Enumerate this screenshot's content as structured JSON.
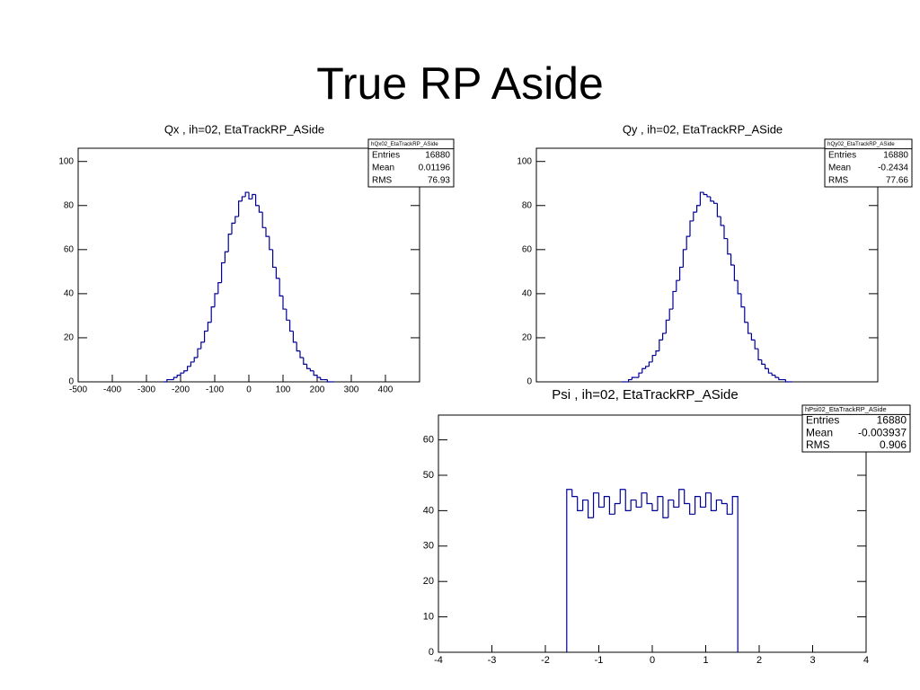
{
  "title": "True RP Aside",
  "chart_data": [
    {
      "type": "histogram",
      "title": "Qx , ih=02, EtaTrackRP_ASide",
      "color": "#000099",
      "bins": [
        -250,
        -240,
        -230,
        -220,
        -210,
        -200,
        -190,
        -180,
        -170,
        -160,
        -150,
        -140,
        -130,
        -120,
        -110,
        -100,
        -90,
        -80,
        -70,
        -60,
        -50,
        -40,
        -30,
        -20,
        -10,
        0,
        10,
        20,
        30,
        40,
        50,
        60,
        70,
        80,
        90,
        100,
        110,
        120,
        130,
        140,
        150,
        160,
        170,
        180,
        190,
        200,
        210,
        220,
        230,
        240,
        250
      ],
      "values": [
        0,
        1,
        1,
        2,
        3,
        4,
        5,
        7,
        9,
        11,
        15,
        18,
        23,
        27,
        34,
        40,
        45,
        54,
        59,
        67,
        72,
        75,
        82,
        84,
        86,
        83,
        85,
        80,
        77,
        70,
        66,
        60,
        52,
        47,
        39,
        33,
        28,
        23,
        18,
        14,
        11,
        8,
        6,
        5,
        3,
        2,
        1,
        1,
        0,
        0
      ],
      "xlim": [
        -500,
        500
      ],
      "ylim": [
        0,
        106
      ],
      "xticks": [
        -500,
        -400,
        -300,
        -200,
        -100,
        0,
        100,
        200,
        300,
        400
      ],
      "yticks": [
        0,
        20,
        40,
        60,
        80,
        100
      ],
      "stats": {
        "name": "hQx02_EtaTrackRP_ASide",
        "rows": [
          {
            "label": "Entries",
            "value": 16880
          },
          {
            "label": "Mean",
            "value": 0.01196
          },
          {
            "label": "RMS",
            "value": 76.93
          }
        ]
      }
    },
    {
      "type": "histogram",
      "title": "Qy , ih=02, EtaTrackRP_ASide",
      "color": "#000099",
      "bins": [
        -250,
        -240,
        -230,
        -220,
        -210,
        -200,
        -190,
        -180,
        -170,
        -160,
        -150,
        -140,
        -130,
        -120,
        -110,
        -100,
        -90,
        -80,
        -70,
        -60,
        -50,
        -40,
        -30,
        -20,
        -10,
        0,
        10,
        20,
        30,
        40,
        50,
        60,
        70,
        80,
        90,
        100,
        110,
        120,
        130,
        140,
        150,
        160,
        170,
        180,
        190,
        200,
        210,
        220,
        230,
        240,
        250
      ],
      "values": [
        0,
        0,
        1,
        2,
        2,
        4,
        6,
        7,
        9,
        12,
        14,
        19,
        22,
        28,
        33,
        41,
        46,
        52,
        60,
        66,
        73,
        77,
        80,
        86,
        85,
        84,
        82,
        81,
        75,
        71,
        65,
        58,
        53,
        46,
        40,
        34,
        27,
        22,
        19,
        15,
        10,
        8,
        6,
        4,
        3,
        2,
        1,
        1,
        0,
        0
      ],
      "xlim": [
        -500,
        500
      ],
      "ylim": [
        0,
        106
      ],
      "xticks": [],
      "yticks": [
        0,
        20,
        40,
        60,
        80,
        100
      ],
      "stats": {
        "name": "hQy02_EtaTrackRP_ASide",
        "rows": [
          {
            "label": "Entries",
            "value": 16880
          },
          {
            "label": "Mean",
            "value": -0.2434
          },
          {
            "label": "RMS",
            "value": 77.66
          }
        ]
      }
    },
    {
      "type": "histogram",
      "title": "Psi , ih=02, EtaTrackRP_ASide",
      "color": "#000099",
      "bins": [
        -1.6,
        -1.5,
        -1.4,
        -1.3,
        -1.2,
        -1.1,
        -1.0,
        -0.9,
        -0.8,
        -0.7,
        -0.6,
        -0.5,
        -0.4,
        -0.3,
        -0.2,
        -0.1,
        0,
        0.1,
        0.2,
        0.3,
        0.4,
        0.5,
        0.6,
        0.7,
        0.8,
        0.9,
        1.0,
        1.1,
        1.2,
        1.3,
        1.4,
        1.5,
        1.6
      ],
      "values": [
        46,
        44,
        40,
        43,
        38,
        45,
        41,
        44,
        39,
        42,
        46,
        40,
        43,
        41,
        45,
        42,
        40,
        44,
        38,
        43,
        41,
        46,
        42,
        39,
        44,
        41,
        45,
        40,
        43,
        42,
        39,
        44
      ],
      "xlim": [
        -4,
        4
      ],
      "ylim": [
        0,
        67
      ],
      "xticks": [
        -4,
        -3,
        -2,
        -1,
        0,
        1,
        2,
        3,
        4
      ],
      "yticks": [
        0,
        10,
        20,
        30,
        40,
        50,
        60
      ],
      "stats": {
        "name": "hPsi02_EtaTrackRP_ASide",
        "rows": [
          {
            "label": "Entries",
            "value": 16880
          },
          {
            "label": "Mean",
            "value": -0.003937
          },
          {
            "label": "RMS",
            "value": 0.906
          }
        ]
      }
    }
  ]
}
